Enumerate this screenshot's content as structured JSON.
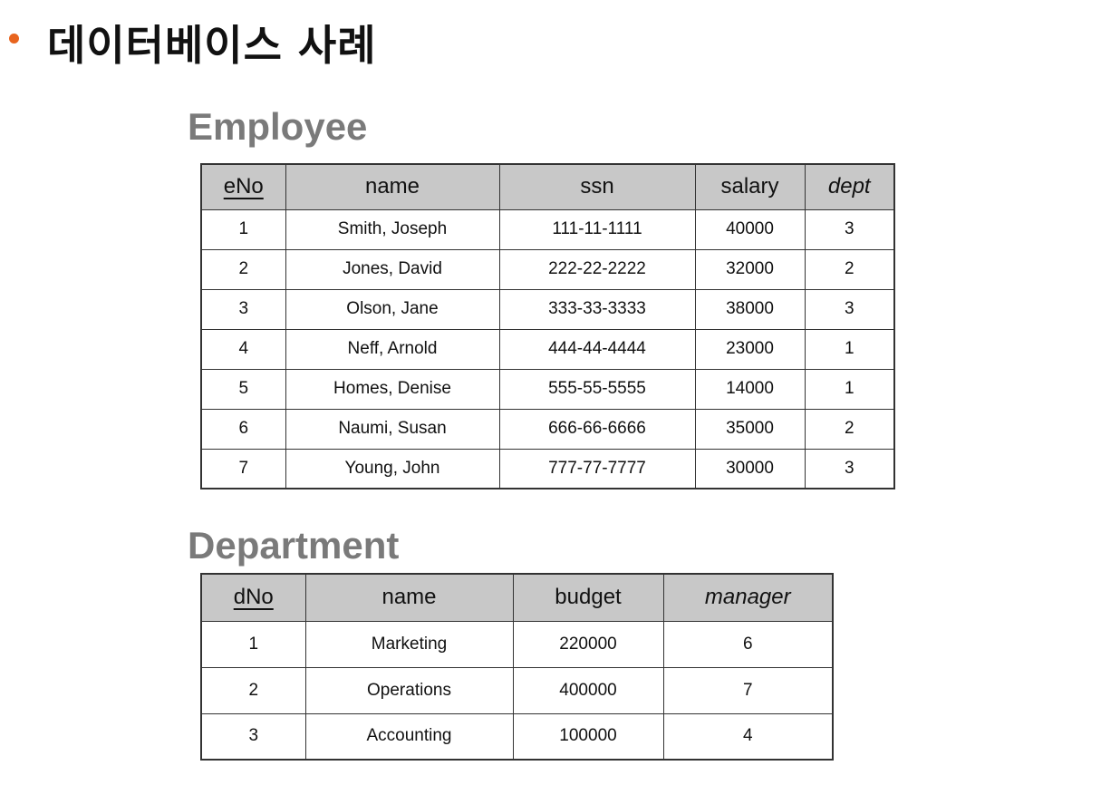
{
  "page": {
    "title": "데이터베이스 사례",
    "bullet_color": "#e8641e"
  },
  "employee": {
    "title": "Employee",
    "columns": {
      "eNo": "eNo",
      "name": "name",
      "ssn": "ssn",
      "salary": "salary",
      "dept": "dept"
    },
    "rows": [
      {
        "eNo": "1",
        "name": "Smith, Joseph",
        "ssn": "111-11-1111",
        "salary": "40000",
        "dept": "3"
      },
      {
        "eNo": "2",
        "name": "Jones, David",
        "ssn": "222-22-2222",
        "salary": "32000",
        "dept": "2"
      },
      {
        "eNo": "3",
        "name": "Olson, Jane",
        "ssn": "333-33-3333",
        "salary": "38000",
        "dept": "3"
      },
      {
        "eNo": "4",
        "name": "Neff, Arnold",
        "ssn": "444-44-4444",
        "salary": "23000",
        "dept": "1"
      },
      {
        "eNo": "5",
        "name": "Homes, Denise",
        "ssn": "555-55-5555",
        "salary": "14000",
        "dept": "1"
      },
      {
        "eNo": "6",
        "name": "Naumi, Susan",
        "ssn": "666-66-6666",
        "salary": "35000",
        "dept": "2"
      },
      {
        "eNo": "7",
        "name": "Young, John",
        "ssn": "777-77-7777",
        "salary": "30000",
        "dept": "3"
      }
    ]
  },
  "department": {
    "title": "Department",
    "columns": {
      "dNo": "dNo",
      "name": "name",
      "budget": "budget",
      "manager": "manager"
    },
    "rows": [
      {
        "dNo": "1",
        "name": "Marketing",
        "budget": "220000",
        "manager": "6"
      },
      {
        "dNo": "2",
        "name": "Operations",
        "budget": "400000",
        "manager": "7"
      },
      {
        "dNo": "3",
        "name": "Accounting",
        "budget": "100000",
        "manager": "4"
      }
    ]
  },
  "colors": {
    "header_fill": "#c8c8c8",
    "section_title": "#7a7a7a",
    "border": "#333333"
  }
}
